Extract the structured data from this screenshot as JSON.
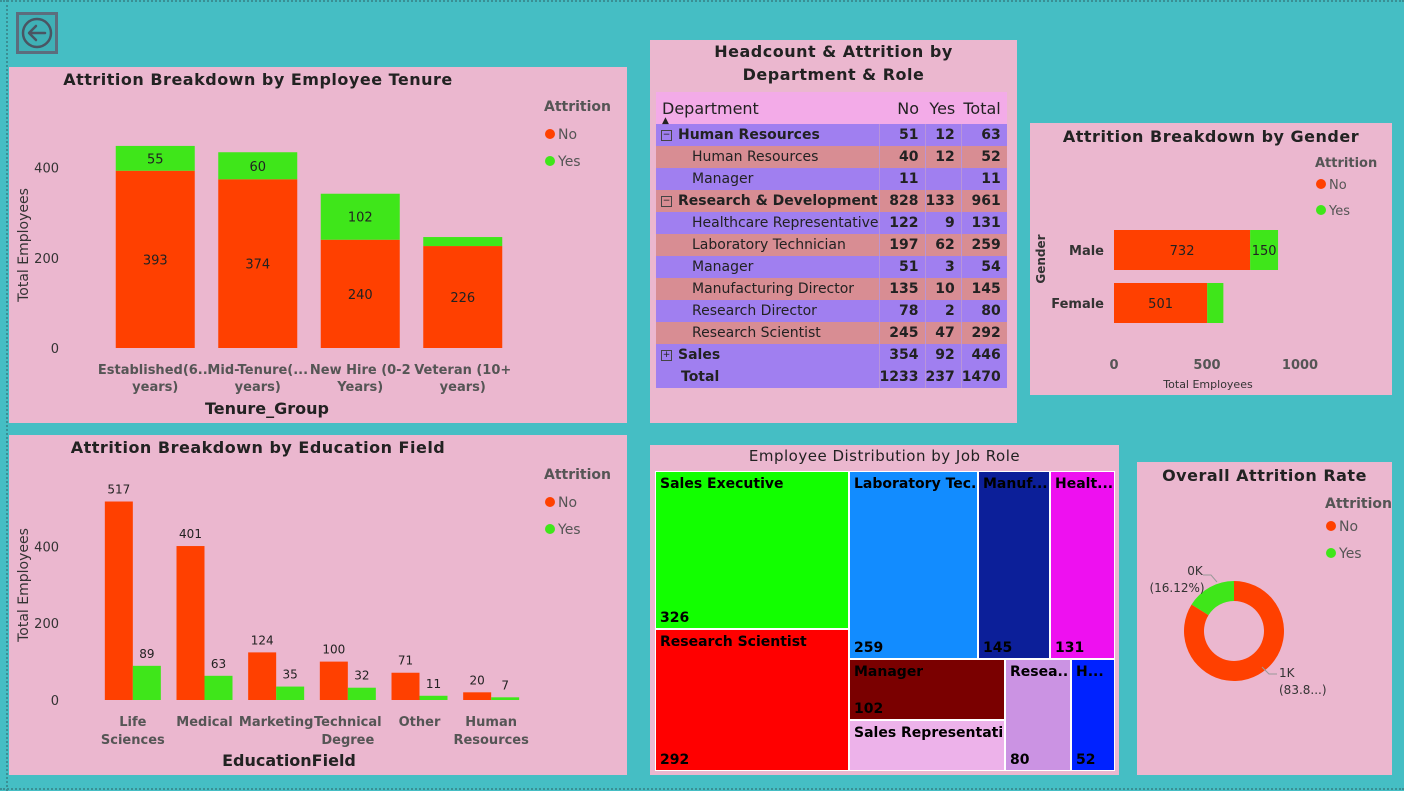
{
  "colors": {
    "no": "#ff4000",
    "yes": "#3fe61a",
    "panel": "#ebb7cf",
    "background": "#45bec4"
  },
  "back_button": {
    "icon": "back-arrow-icon"
  },
  "tenure": {
    "title": "Attrition Breakdown by Employee Tenure",
    "legend_title": "Attrition",
    "legend_no": "No",
    "legend_yes": "Yes"
  },
  "education": {
    "title": "Attrition Breakdown by Education Field",
    "legend_title": "Attrition",
    "legend_no": "No",
    "legend_yes": "Yes"
  },
  "gender": {
    "title": "Attrition Breakdown by Gender",
    "legend_title": "Attrition",
    "legend_no": "No",
    "legend_yes": "Yes"
  },
  "donut": {
    "title": "Overall Attrition Rate",
    "legend_title": "Attrition",
    "legend_no": "No",
    "legend_yes": "Yes",
    "label_yes_value": "0K",
    "label_yes_pct": "(16.12%)",
    "label_no_value": "1K",
    "label_no_pct": "(83.8...)"
  },
  "matrix": {
    "title": "Headcount & Attrition by Department & Role",
    "headers": {
      "dept": "Department",
      "no": "No",
      "yes": "Yes",
      "total": "Total"
    },
    "rows": [
      {
        "label": "Human Resources",
        "no": "51",
        "yes": "12",
        "total": "63",
        "level": 1,
        "toggle": "⊟",
        "style": "rpurple"
      },
      {
        "label": "Human Resources",
        "no": "40",
        "yes": "12",
        "total": "52",
        "level": 2,
        "toggle": "",
        "style": "rsalmon"
      },
      {
        "label": "Manager",
        "no": "11",
        "yes": "",
        "total": "11",
        "level": 2,
        "toggle": "",
        "style": "rpurple"
      },
      {
        "label": "Research & Development",
        "no": "828",
        "yes": "133",
        "total": "961",
        "level": 1,
        "toggle": "⊟",
        "style": "rsalmon"
      },
      {
        "label": "Healthcare Representative",
        "no": "122",
        "yes": "9",
        "total": "131",
        "level": 2,
        "toggle": "",
        "style": "rpurple"
      },
      {
        "label": "Laboratory Technician",
        "no": "197",
        "yes": "62",
        "total": "259",
        "level": 2,
        "toggle": "",
        "style": "rsalmon"
      },
      {
        "label": "Manager",
        "no": "51",
        "yes": "3",
        "total": "54",
        "level": 2,
        "toggle": "",
        "style": "rpurple"
      },
      {
        "label": "Manufacturing Director",
        "no": "135",
        "yes": "10",
        "total": "145",
        "level": 2,
        "toggle": "",
        "style": "rsalmon"
      },
      {
        "label": "Research Director",
        "no": "78",
        "yes": "2",
        "total": "80",
        "level": 2,
        "toggle": "",
        "style": "rpurple"
      },
      {
        "label": "Research Scientist",
        "no": "245",
        "yes": "47",
        "total": "292",
        "level": 2,
        "toggle": "",
        "style": "rsalmon"
      },
      {
        "label": "Sales",
        "no": "354",
        "yes": "92",
        "total": "446",
        "level": 1,
        "toggle": "⊞",
        "style": "rpurple"
      },
      {
        "label": "Total",
        "no": "1233",
        "yes": "237",
        "total": "1470",
        "level": 0,
        "toggle": "",
        "style": "rtotal"
      }
    ]
  },
  "treemap": {
    "title": "Employee Distribution by Job Role",
    "cells": [
      {
        "label": "Sales Executive",
        "value": "326",
        "color": "#12ff00",
        "text": "#000"
      },
      {
        "label": "Research Scientist",
        "value": "292",
        "color": "#ff0000",
        "text": "#000"
      },
      {
        "label": "Laboratory Tec...",
        "value": "259",
        "color": "#128cff",
        "text": "#000"
      },
      {
        "label": "Manuf...",
        "value": "145",
        "color": "#0c1f99",
        "text": "#000"
      },
      {
        "label": "Healt...",
        "value": "131",
        "color": "#ee10f0",
        "text": "#000"
      },
      {
        "label": "Manager",
        "value": "102",
        "color": "#7a0000",
        "text": "#000"
      },
      {
        "label": "Sales Representative",
        "value": "",
        "color": "#edb2ea",
        "text": "#000"
      },
      {
        "label": "Resea...",
        "value": "80",
        "color": "#cb93e3",
        "text": "#000"
      },
      {
        "label": "H...",
        "value": "52",
        "color": "#0022ff",
        "text": "#000"
      }
    ]
  },
  "chart_data": [
    {
      "type": "bar",
      "stacked": true,
      "title": "Attrition Breakdown by Employee Tenure",
      "xlabel": "Tenure_Group",
      "ylabel": "Total Employees",
      "ylim": [
        0,
        470
      ],
      "yticks": [
        0,
        200,
        400
      ],
      "categories": [
        "Established(6...\nyears)",
        "Mid-Tenure(...\nyears)",
        "New Hire (0-2\nYears)",
        "Veteran (10+\nyears)"
      ],
      "series": [
        {
          "name": "No",
          "values": [
            393,
            374,
            240,
            226
          ],
          "labels": [
            "393",
            "374",
            "240",
            "226"
          ]
        },
        {
          "name": "Yes",
          "values": [
            55,
            60,
            102,
            20
          ],
          "labels": [
            "55",
            "60",
            "102",
            ""
          ]
        }
      ],
      "legend": "top-right"
    },
    {
      "type": "bar",
      "title": "Attrition Breakdown by Education Field",
      "xlabel": "EducationField",
      "ylabel": "Total Employees",
      "ylim": [
        0,
        560
      ],
      "yticks": [
        0,
        200,
        400
      ],
      "categories": [
        "Life\nSciences",
        "Medical",
        "Marketing",
        "Technical\nDegree",
        "Other",
        "Human\nResources"
      ],
      "series": [
        {
          "name": "No",
          "values": [
            517,
            401,
            124,
            100,
            71,
            20
          ]
        },
        {
          "name": "Yes",
          "values": [
            89,
            63,
            35,
            32,
            11,
            7
          ]
        }
      ],
      "legend": "top-right"
    },
    {
      "type": "bar",
      "orientation": "horizontal",
      "stacked": true,
      "title": "Attrition Breakdown by Gender",
      "xlabel": "Total Employees",
      "ylabel": "Gender",
      "xlim": [
        0,
        1000
      ],
      "xticks": [
        0,
        500,
        1000
      ],
      "categories": [
        "Male",
        "Female"
      ],
      "series": [
        {
          "name": "No",
          "values": [
            732,
            501
          ],
          "labels": [
            "732",
            "501"
          ]
        },
        {
          "name": "Yes",
          "values": [
            150,
            87
          ],
          "labels": [
            "150",
            ""
          ]
        }
      ],
      "legend": "top-right"
    },
    {
      "type": "pie",
      "donut": true,
      "title": "Overall Attrition Rate",
      "labels": [
        "No",
        "Yes"
      ],
      "values": [
        1233,
        237
      ],
      "percent": [
        83.88,
        16.12
      ]
    }
  ]
}
